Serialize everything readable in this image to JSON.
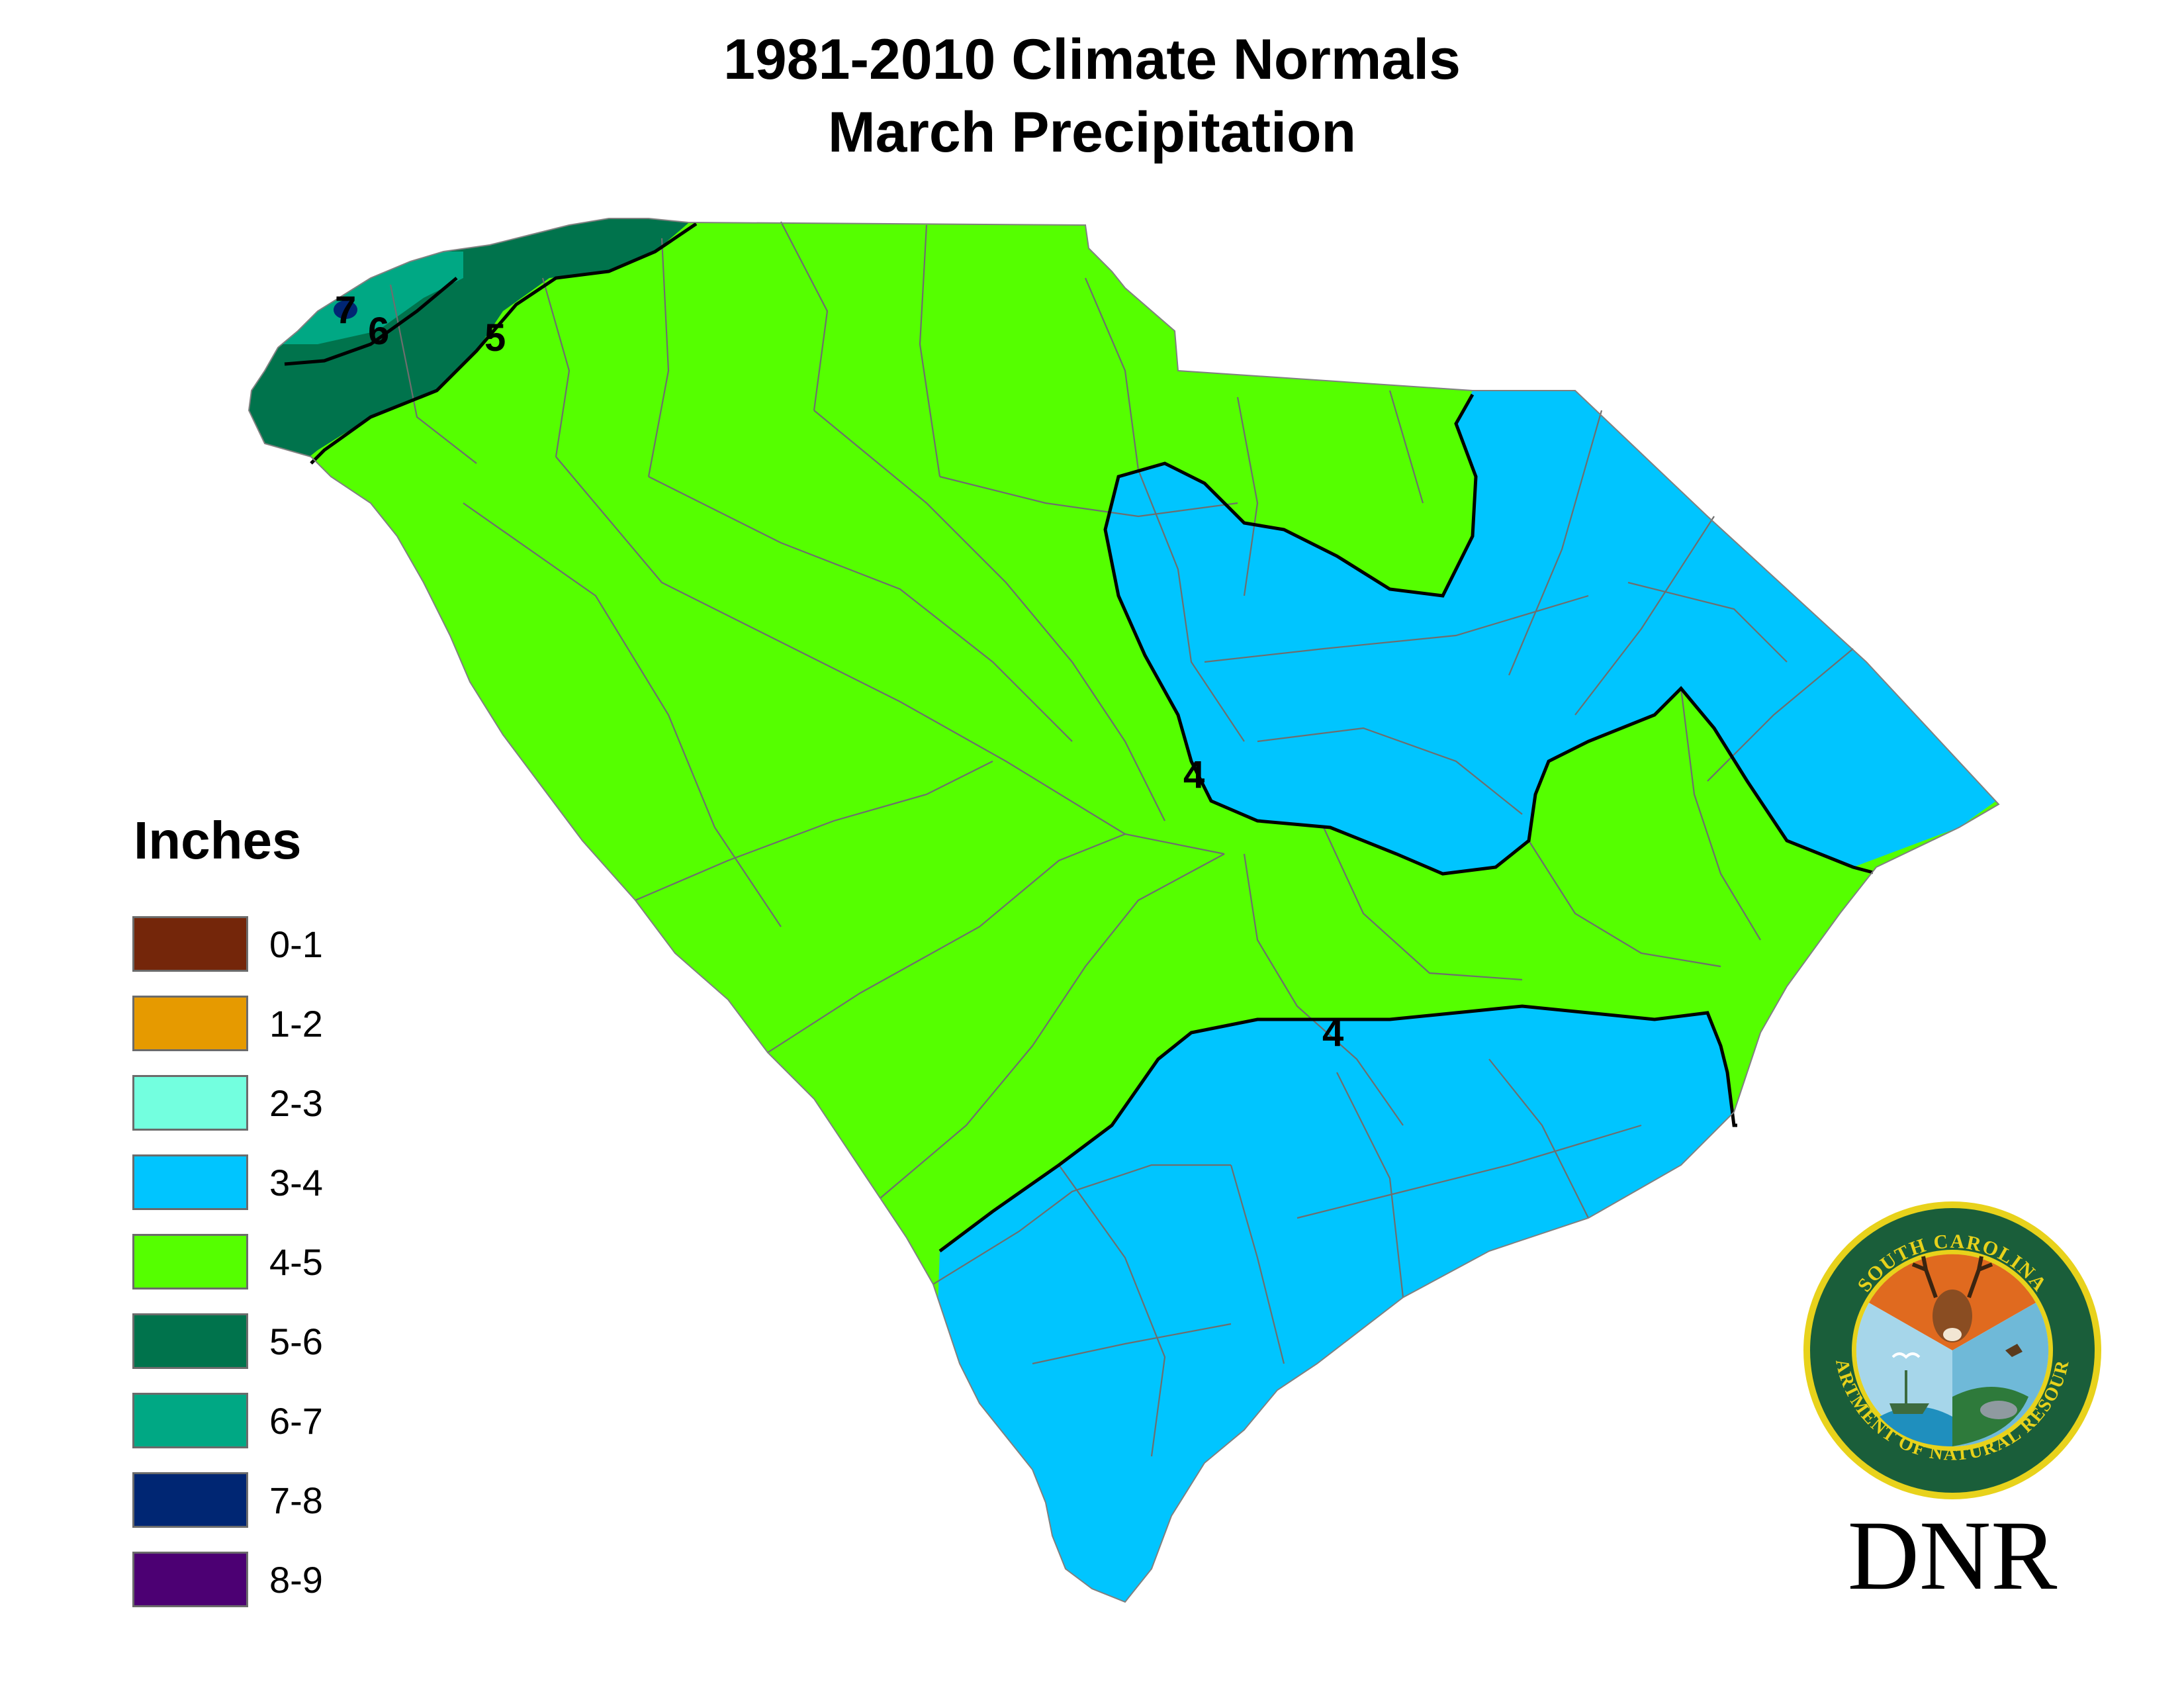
{
  "title": {
    "line1": "1981-2010 Climate Normals",
    "line2": "March Precipitation"
  },
  "legend": {
    "title": "Inches",
    "items": [
      {
        "label": "0-1",
        "color": "#74260a"
      },
      {
        "label": "1-2",
        "color": "#e69a00"
      },
      {
        "label": "2-3",
        "color": "#73ffdf"
      },
      {
        "label": "3-4",
        "color": "#00c5ff"
      },
      {
        "label": "4-5",
        "color": "#55ff00"
      },
      {
        "label": "5-6",
        "color": "#00734c"
      },
      {
        "label": "6-7",
        "color": "#00a884"
      },
      {
        "label": "7-8",
        "color": "#002673"
      },
      {
        "label": "8-9",
        "color": "#4c0073"
      }
    ]
  },
  "map": {
    "region": "South Carolina",
    "contour_labels": [
      "7",
      "6",
      "5",
      "4",
      "4"
    ],
    "zone_colors": {
      "4-5": "#55ff00",
      "3-4": "#00c5ff",
      "5-6": "#00734c",
      "6-7": "#00a884",
      "7-8": "#002673"
    }
  },
  "logo": {
    "seal_text_top": "SOUTH CAROLINA",
    "seal_text_bottom": "DEPARTMENT OF NATURAL RESOURCES",
    "wordmark": "DNR"
  }
}
